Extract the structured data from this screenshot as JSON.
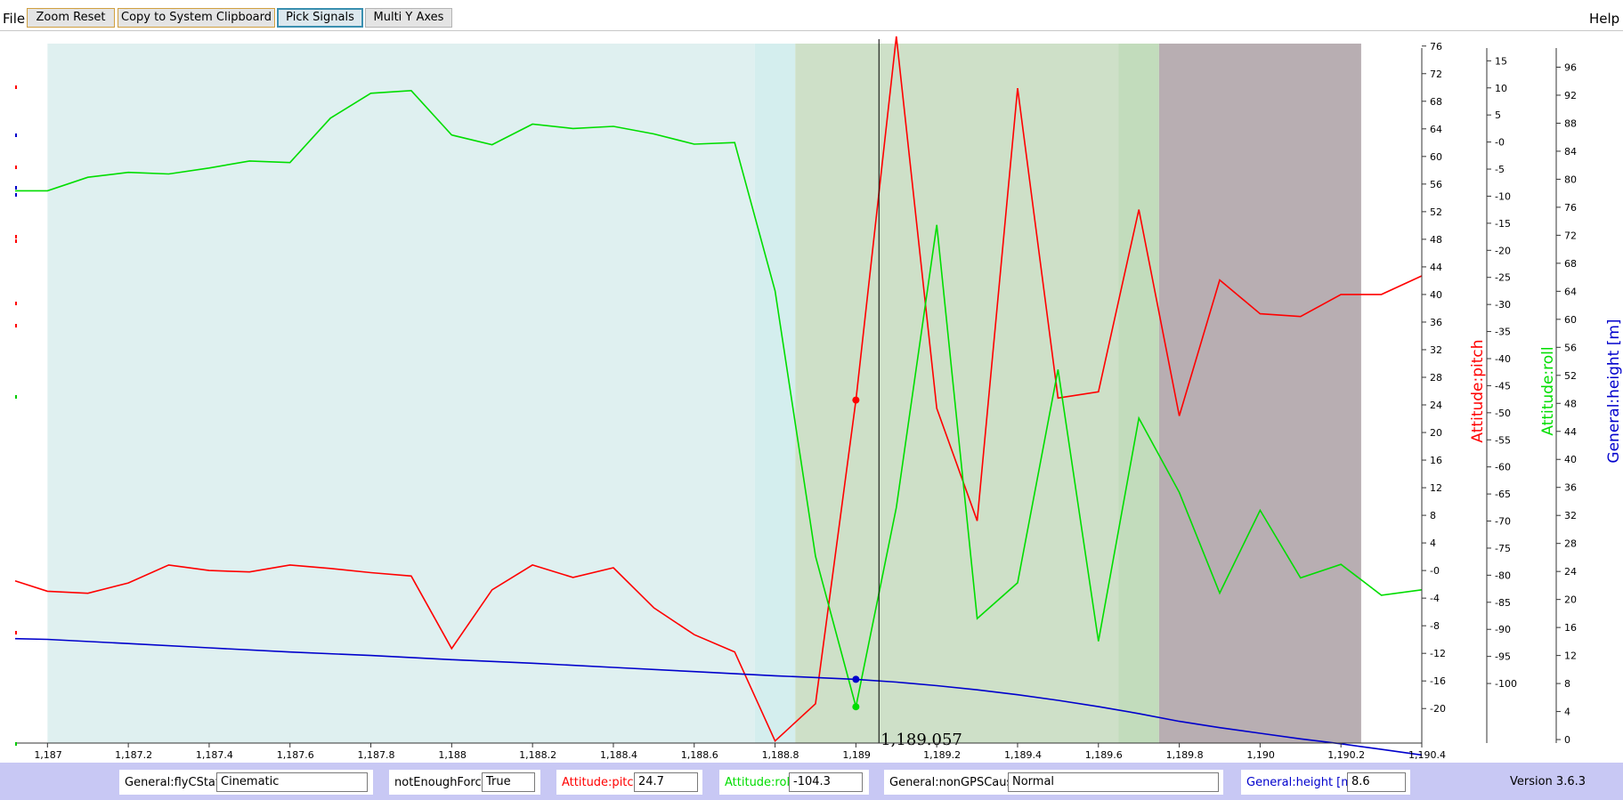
{
  "menu": {
    "file": "File",
    "help": "Help"
  },
  "toolbar": {
    "zoom_reset": "Zoom Reset",
    "copy_clipboard": "Copy to System Clipboard",
    "pick_signals": "Pick Signals",
    "multi_y_axes": "Multi Y Axes"
  },
  "cursor": {
    "label": "1,189.057"
  },
  "status": {
    "fields": [
      {
        "label": "General:flyCState",
        "value": "Cinematic",
        "color": "#000000"
      },
      {
        "label": "notEnoughForce",
        "value": "True",
        "color": "#000000"
      },
      {
        "label": "Attitude:pitch",
        "value": "24.7",
        "color": "#ff0000"
      },
      {
        "label": "Attitude:roll",
        "value": "-104.3",
        "color": "#00cc00"
      },
      {
        "label": "General:nonGPSCause",
        "value": "Normal",
        "color": "#000000"
      },
      {
        "label": "General:height [m]",
        "value": "8.6",
        "color": "#0000cc"
      }
    ],
    "version": "Version 3.6.3"
  },
  "chart_data": {
    "type": "line",
    "x_ticks": [
      "1,187",
      "1,187.2",
      "1,187.4",
      "1,187.6",
      "1,187.8",
      "1,188",
      "1,188.2",
      "1,188.4",
      "1,188.6",
      "1,188.8",
      "1,189",
      "1,189.2",
      "1,189.4",
      "1,189.6",
      "1,189.8",
      "1,190",
      "1,190.2",
      "1,190.4"
    ],
    "xlim": [
      1186.92,
      1190.4
    ],
    "axes": [
      {
        "id": "pitch",
        "label": "Attitude:pitch",
        "color": "#ff0000",
        "ylim": [
          -25,
          77
        ],
        "ticks": [
          "76",
          "72",
          "68",
          "64",
          "60",
          "56",
          "52",
          "48",
          "44",
          "40",
          "36",
          "32",
          "28",
          "24",
          "20",
          "16",
          "12",
          "8",
          "4",
          "-0",
          "-4",
          "-8",
          "-12",
          "-16",
          "-20"
        ]
      },
      {
        "id": "roll",
        "label": "Attitude:roll",
        "color": "#00dd00",
        "ylim": [
          -111,
          19
        ],
        "ticks": [
          "15",
          "10",
          "5",
          "-0",
          "-5",
          "-10",
          "-15",
          "-20",
          "-25",
          "-30",
          "-35",
          "-40",
          "-45",
          "-50",
          "-55",
          "-60",
          "-65",
          "-70",
          "-75",
          "-80",
          "-85",
          "-90",
          "-95",
          "-100"
        ]
      },
      {
        "id": "height",
        "label": "General:height [m]",
        "color": "#0000cc",
        "ylim": [
          -0.5,
          100
        ],
        "ticks": [
          "96",
          "92",
          "88",
          "84",
          "80",
          "76",
          "72",
          "68",
          "64",
          "60",
          "56",
          "52",
          "48",
          "44",
          "40",
          "36",
          "32",
          "28",
          "24",
          "20",
          "16",
          "12",
          "8",
          "4",
          "0"
        ]
      }
    ],
    "shaded_regions": [
      {
        "x": [
          1187.0,
          1188.75
        ],
        "color": "#dff0f0"
      },
      {
        "x": [
          1188.75,
          1188.85
        ],
        "color": "#d4eeee"
      },
      {
        "x": [
          1188.85,
          1189.65
        ],
        "color": "#cee0c8"
      },
      {
        "x": [
          1189.65,
          1189.75
        ],
        "color": "#c2dcbc"
      },
      {
        "x": [
          1189.75,
          1190.25
        ],
        "color": "#b8aeb2"
      }
    ],
    "cursor_x": 1189.057,
    "series": [
      {
        "name": "Attitude:pitch",
        "axis": "pitch",
        "color": "#ff0000",
        "x": [
          1186.92,
          1187.0,
          1187.1,
          1187.2,
          1187.3,
          1187.4,
          1187.5,
          1187.6,
          1187.7,
          1187.8,
          1187.9,
          1188.0,
          1188.1,
          1188.2,
          1188.3,
          1188.4,
          1188.5,
          1188.6,
          1188.7,
          1188.8,
          1188.9,
          1189.0,
          1189.1,
          1189.2,
          1189.3,
          1189.4,
          1189.5,
          1189.6,
          1189.7,
          1189.8,
          1189.9,
          1190.0,
          1190.1,
          1190.2,
          1190.3,
          1190.4
        ],
        "y": [
          -1.5,
          -3,
          -3.3,
          -1.8,
          0.8,
          0,
          -0.2,
          0.8,
          0.3,
          -0.3,
          -0.8,
          -11.3,
          -2.8,
          0.8,
          -1,
          0.4,
          -5.4,
          -9.3,
          -11.8,
          -24.7,
          -19.3,
          24.7,
          77.4,
          23.5,
          7.2,
          69.9,
          25,
          25.9,
          52.3,
          22.4,
          42.1,
          37.2,
          36.8,
          40,
          40,
          42.7
        ]
      },
      {
        "name": "Attitude:roll",
        "axis": "roll",
        "color": "#00dd00",
        "x": [
          1186.92,
          1187.0,
          1187.1,
          1187.2,
          1187.3,
          1187.4,
          1187.5,
          1187.6,
          1187.7,
          1187.8,
          1187.9,
          1188.0,
          1188.1,
          1188.2,
          1188.3,
          1188.4,
          1188.5,
          1188.6,
          1188.7,
          1188.8,
          1188.9,
          1189.0,
          1189.1,
          1189.2,
          1189.3,
          1189.4,
          1189.5,
          1189.6,
          1189.7,
          1189.8,
          1189.9,
          1190.0,
          1190.1,
          1190.2,
          1190.3,
          1190.4
        ],
        "y": [
          -9,
          -9,
          -6.5,
          -5.6,
          -5.9,
          -4.8,
          -3.5,
          -3.8,
          4.4,
          9,
          9.5,
          1.3,
          -0.5,
          3.3,
          2.5,
          2.9,
          1.5,
          -0.4,
          -0.1,
          -27.5,
          -76.5,
          -104.3,
          -67.5,
          -15.3,
          -88,
          -81.4,
          -42,
          -92.2,
          -51,
          -64.7,
          -83.3,
          -68,
          -80.5,
          -78,
          -83.7,
          -82.7
        ]
      },
      {
        "name": "General:height [m]",
        "axis": "height",
        "color": "#0000cc",
        "x": [
          1186.92,
          1187.0,
          1187.2,
          1187.4,
          1187.6,
          1187.8,
          1188.0,
          1188.2,
          1188.4,
          1188.6,
          1188.8,
          1189.0,
          1189.1,
          1189.2,
          1189.3,
          1189.4,
          1189.5,
          1189.6,
          1189.7,
          1189.8,
          1189.9,
          1190.0,
          1190.1,
          1190.2,
          1190.3,
          1190.4
        ],
        "y": [
          14.4,
          14.3,
          13.7,
          13.1,
          12.5,
          12,
          11.4,
          10.9,
          10.3,
          9.7,
          9.1,
          8.6,
          8.2,
          7.7,
          7.1,
          6.4,
          5.6,
          4.7,
          3.7,
          2.6,
          1.7,
          0.9,
          0.1,
          -0.6,
          -1.4,
          -2.2
        ]
      }
    ],
    "markers": [
      {
        "x": 1189.0,
        "y": 24.7,
        "axis": "pitch",
        "color": "#ff0000"
      },
      {
        "x": 1189.0,
        "y": -104.3,
        "axis": "roll",
        "color": "#00dd00"
      },
      {
        "x": 1189.0,
        "y": 8.6,
        "axis": "height",
        "color": "#0000cc"
      }
    ]
  }
}
